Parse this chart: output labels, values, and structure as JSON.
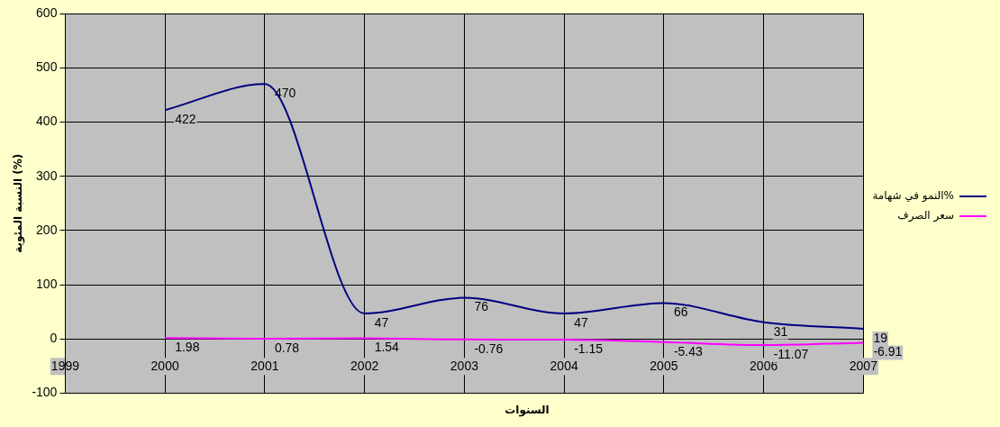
{
  "chart_data": {
    "type": "line",
    "xlabel": "السنوات",
    "ylabel": "النسبة المئوية (%)",
    "x": [
      2000,
      2001,
      2002,
      2003,
      2004,
      2005,
      2006,
      2007
    ],
    "series": [
      {
        "name": "النمو في شهامة%",
        "color": "#000080",
        "values": [
          422,
          470,
          47,
          76,
          47,
          66,
          31,
          19
        ]
      },
      {
        "name": "سعر الصرف",
        "color": "#ff00ff",
        "values": [
          1.98,
          0.78,
          1.54,
          -0.76,
          -1.15,
          -5.43,
          -11.07,
          -6.91
        ]
      }
    ],
    "xlim": [
      1999,
      2007
    ],
    "xticks": [
      1999,
      2000,
      2001,
      2002,
      2003,
      2004,
      2005,
      2006,
      2007
    ],
    "ylim": [
      -100,
      600
    ],
    "yticks": [
      -100,
      0,
      100,
      200,
      300,
      400,
      500,
      600
    ],
    "grid": true,
    "legend": "right",
    "marker": "none",
    "data_labels": true
  }
}
